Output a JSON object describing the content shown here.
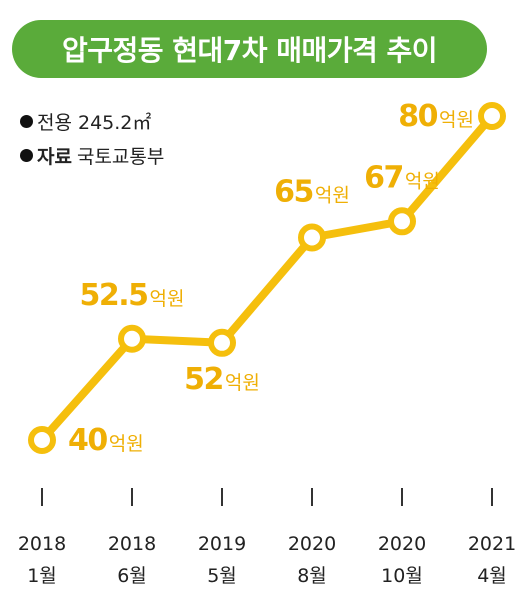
{
  "title": "압구정동 현대7차 매매가격 추이",
  "notes": {
    "area_label": "전용 245.2㎡",
    "source_key": "자료",
    "source_value": "국토교통부"
  },
  "colors": {
    "title_bg": "#5aab3a",
    "line": "#f5bf0d",
    "label": "#efaf05",
    "tick": "#222222"
  },
  "chart_data": {
    "type": "line",
    "title": "압구정동 현대7차 매매가격 추이",
    "value_unit": "억원",
    "categories": [
      [
        "2018",
        "1월"
      ],
      [
        "2018",
        "6월"
      ],
      [
        "2019",
        "5월"
      ],
      [
        "2020",
        "8월"
      ],
      [
        "2020",
        "10월"
      ],
      [
        "2021",
        "4월"
      ]
    ],
    "values": [
      40,
      52.5,
      52,
      65,
      67,
      80
    ],
    "value_labels": [
      "40",
      "52.5",
      "52",
      "65",
      "67",
      "80"
    ],
    "y_axis_visible": false,
    "grid": false,
    "legend": "none"
  }
}
